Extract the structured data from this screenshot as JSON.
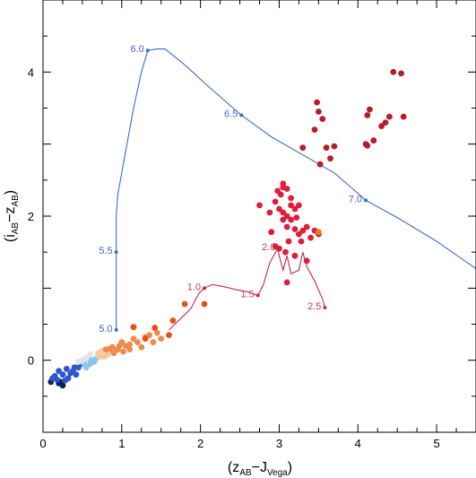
{
  "chart_data": {
    "type": "scatter",
    "title": "",
    "xlabel": {
      "pre": "(z",
      "sub1": "AB",
      "mid": "−J",
      "sub2": "Vega",
      "post": ")"
    },
    "ylabel": {
      "pre": "(i",
      "sub1": "AB",
      "mid": "−z",
      "sub2": "AB",
      "post": ")"
    },
    "xlim": [
      0,
      5.5
    ],
    "ylim": [
      -1,
      5
    ],
    "xticks": [
      0,
      1,
      2,
      3,
      4,
      5
    ],
    "yticks": [
      0,
      2,
      4
    ],
    "colors": {
      "blue_track": "#3a6bd4",
      "red_track": "#c8284a",
      "blue_track_label": "#4a64c8",
      "red_track_label": "#c03a5a"
    },
    "tracks": [
      {
        "color": "#3a6bd4",
        "points": [
          [
            0.93,
            0.42
          ],
          [
            0.93,
            0.8
          ],
          [
            0.93,
            1.5
          ],
          [
            0.93,
            2.0
          ],
          [
            0.95,
            2.3
          ],
          [
            1.05,
            2.9
          ],
          [
            1.15,
            3.5
          ],
          [
            1.25,
            4.0
          ],
          [
            1.33,
            4.3
          ],
          [
            1.45,
            4.32
          ],
          [
            1.55,
            4.32
          ],
          [
            1.8,
            4.1
          ],
          [
            2.1,
            3.8
          ],
          [
            2.52,
            3.4
          ],
          [
            2.9,
            3.1
          ],
          [
            3.3,
            2.85
          ],
          [
            3.7,
            2.6
          ],
          [
            4.1,
            2.22
          ],
          [
            4.5,
            1.98
          ],
          [
            5.0,
            1.65
          ],
          [
            5.5,
            1.27
          ]
        ],
        "markers": [
          {
            "x": 0.93,
            "y": 0.42,
            "label": "5.0"
          },
          {
            "x": 0.93,
            "y": 1.5,
            "label": "5.5"
          },
          {
            "x": 1.33,
            "y": 4.3,
            "label": "6.0"
          },
          {
            "x": 2.52,
            "y": 3.4,
            "label": "6.5"
          },
          {
            "x": 4.1,
            "y": 2.22,
            "label": "7.0"
          }
        ]
      },
      {
        "color": "#c8284a",
        "points": [
          [
            1.6,
            0.42
          ],
          [
            1.75,
            0.58
          ],
          [
            1.88,
            0.72
          ],
          [
            1.98,
            0.93
          ],
          [
            2.05,
            1.0
          ],
          [
            2.15,
            1.05
          ],
          [
            2.3,
            1.02
          ],
          [
            2.45,
            0.98
          ],
          [
            2.6,
            0.95
          ],
          [
            2.73,
            0.9
          ],
          [
            2.8,
            1.05
          ],
          [
            2.88,
            1.35
          ],
          [
            2.98,
            1.55
          ],
          [
            3.0,
            1.45
          ],
          [
            3.05,
            1.25
          ],
          [
            3.1,
            1.45
          ],
          [
            3.15,
            1.2
          ],
          [
            3.25,
            1.25
          ],
          [
            3.3,
            1.5
          ],
          [
            3.35,
            1.3
          ],
          [
            3.45,
            1.1
          ],
          [
            3.55,
            0.85
          ],
          [
            3.58,
            0.73
          ]
        ],
        "markers": [
          {
            "x": 2.05,
            "y": 1.0,
            "label": "1.0"
          },
          {
            "x": 2.73,
            "y": 0.9,
            "label": "1.5"
          },
          {
            "x": 3.0,
            "y": 1.55,
            "label": "2.0"
          },
          {
            "x": 3.58,
            "y": 0.73,
            "label": "2.5"
          }
        ]
      }
    ],
    "series": [
      {
        "color": "#0c1f5e",
        "points": [
          [
            0.1,
            -0.3
          ],
          [
            0.2,
            -0.32
          ],
          [
            0.25,
            -0.35
          ],
          [
            0.22,
            -0.3
          ]
        ]
      },
      {
        "color": "#3355cc",
        "points": [
          [
            0.15,
            -0.22
          ],
          [
            0.2,
            -0.15
          ],
          [
            0.25,
            -0.2
          ],
          [
            0.3,
            -0.12
          ],
          [
            0.32,
            -0.25
          ],
          [
            0.35,
            -0.18
          ],
          [
            0.4,
            -0.1
          ],
          [
            0.42,
            -0.2
          ],
          [
            0.28,
            -0.28
          ],
          [
            0.18,
            -0.27
          ],
          [
            0.45,
            -0.1
          ],
          [
            0.38,
            -0.15
          ],
          [
            0.12,
            -0.25
          ],
          [
            0.5,
            -0.05
          ]
        ]
      },
      {
        "color": "#89c6ef",
        "points": [
          [
            0.55,
            -0.1
          ],
          [
            0.6,
            -0.05
          ],
          [
            0.62,
            0.0
          ],
          [
            0.68,
            0.03
          ],
          [
            0.52,
            -0.05
          ],
          [
            0.57,
            0.02
          ],
          [
            0.65,
            -0.02
          ]
        ]
      },
      {
        "color": "#e6e2ec",
        "points": [
          [
            0.55,
            0.03
          ],
          [
            0.6,
            0.08
          ],
          [
            0.7,
            0.07
          ],
          [
            0.5,
            0.0
          ],
          [
            0.45,
            -0.02
          ]
        ]
      },
      {
        "color": "#f7c7a0",
        "points": [
          [
            0.7,
            0.1
          ],
          [
            0.75,
            0.13
          ],
          [
            0.78,
            0.05
          ],
          [
            0.82,
            0.08
          ],
          [
            0.72,
            0.05
          ],
          [
            0.85,
            0.12
          ]
        ]
      },
      {
        "color": "#ee8a4a",
        "points": [
          [
            0.8,
            0.15
          ],
          [
            0.88,
            0.18
          ],
          [
            0.95,
            0.15
          ],
          [
            1.0,
            0.25
          ],
          [
            1.05,
            0.2
          ],
          [
            0.9,
            0.1
          ],
          [
            1.1,
            0.22
          ],
          [
            1.15,
            0.3
          ],
          [
            1.25,
            0.18
          ],
          [
            1.3,
            0.32
          ],
          [
            1.35,
            0.35
          ],
          [
            1.4,
            0.25
          ],
          [
            1.45,
            0.38
          ],
          [
            1.5,
            0.3
          ],
          [
            0.97,
            0.2
          ],
          [
            1.2,
            0.25
          ],
          [
            1.1,
            0.15
          ],
          [
            0.85,
            0.16
          ],
          [
            1.02,
            0.12
          ]
        ]
      },
      {
        "color": "#e85010",
        "points": [
          [
            1.15,
            0.46
          ],
          [
            1.42,
            0.45
          ],
          [
            1.65,
            0.55
          ],
          [
            1.8,
            0.78
          ],
          [
            2.05,
            0.78
          ],
          [
            1.6,
            0.35
          ],
          [
            1.3,
            0.3
          ]
        ]
      },
      {
        "color": "#dc1e3c",
        "points": [
          [
            2.75,
            2.15
          ],
          [
            2.88,
            2.05
          ],
          [
            2.95,
            2.2
          ],
          [
            3.02,
            2.3
          ],
          [
            3.05,
            2.45
          ],
          [
            3.1,
            2.38
          ],
          [
            3.15,
            2.25
          ],
          [
            3.2,
            2.1
          ],
          [
            3.25,
            2.15
          ],
          [
            3.0,
            2.1
          ],
          [
            3.05,
            1.95
          ],
          [
            3.1,
            1.85
          ],
          [
            3.15,
            1.95
          ],
          [
            3.2,
            1.82
          ],
          [
            3.25,
            1.75
          ],
          [
            3.3,
            1.8
          ],
          [
            3.35,
            1.85
          ],
          [
            3.4,
            1.7
          ],
          [
            3.45,
            1.8
          ],
          [
            3.5,
            1.75
          ],
          [
            3.05,
            2.4
          ],
          [
            3.1,
            2.0
          ],
          [
            2.9,
            1.78
          ],
          [
            2.95,
            1.58
          ],
          [
            3.0,
            1.55
          ],
          [
            3.08,
            1.5
          ],
          [
            3.28,
            1.65
          ],
          [
            3.12,
            1.65
          ],
          [
            3.2,
            1.45
          ],
          [
            3.1,
            1.08
          ],
          [
            3.35,
            1.38
          ],
          [
            3.05,
            2.05
          ],
          [
            3.15,
            2.15
          ],
          [
            2.98,
            2.35
          ],
          [
            3.22,
            1.98
          ]
        ]
      },
      {
        "color": "#b51d2a",
        "points": [
          [
            3.3,
            2.95
          ],
          [
            3.45,
            3.2
          ],
          [
            3.5,
            3.45
          ],
          [
            3.52,
            2.72
          ],
          [
            3.55,
            3.35
          ],
          [
            3.6,
            2.95
          ],
          [
            3.65,
            2.8
          ],
          [
            3.7,
            2.97
          ],
          [
            3.48,
            3.58
          ],
          [
            4.1,
            3.0
          ],
          [
            4.12,
            3.4
          ],
          [
            4.15,
            3.48
          ],
          [
            4.2,
            3.05
          ],
          [
            4.3,
            3.25
          ],
          [
            4.35,
            3.3
          ],
          [
            4.4,
            3.38
          ],
          [
            4.45,
            4.0
          ],
          [
            4.55,
            3.98
          ],
          [
            4.58,
            3.38
          ],
          [
            4.12,
            2.98
          ]
        ]
      },
      {
        "color": "#e87a2a",
        "points": [
          [
            3.5,
            1.78
          ]
        ]
      }
    ]
  }
}
